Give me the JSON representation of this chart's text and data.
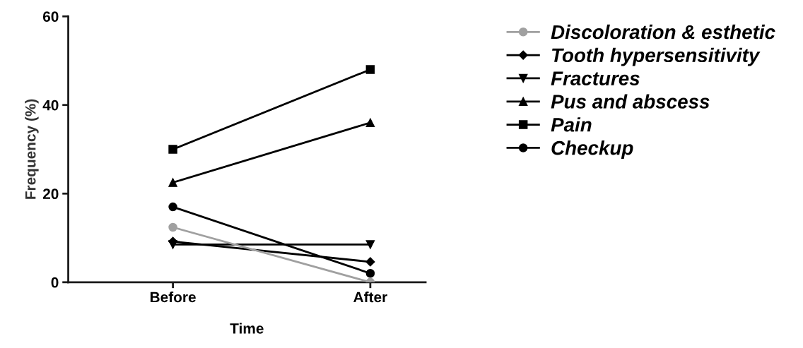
{
  "chart_data": {
    "type": "line",
    "xlabel": "Time",
    "ylabel": "Frequency (%)",
    "categories": [
      "Before",
      "After"
    ],
    "series": [
      {
        "name": "Discoloration & esthetic",
        "color": "#a0a0a0",
        "marker": "circle",
        "values": [
          12.4,
          0
        ]
      },
      {
        "name": "Tooth hypersensitivity",
        "color": "#000000",
        "marker": "diamond",
        "values": [
          9.2,
          4.6
        ]
      },
      {
        "name": "Fractures",
        "color": "#000000",
        "marker": "triangle_down",
        "values": [
          8.5,
          8.5
        ]
      },
      {
        "name": "Pus and abscess",
        "color": "#000000",
        "marker": "triangle",
        "values": [
          22.5,
          36
        ]
      },
      {
        "name": "Pain",
        "color": "#000000",
        "marker": "square",
        "values": [
          30,
          48
        ]
      },
      {
        "name": "Checkup",
        "color": "#000000",
        "marker": "circle",
        "values": [
          17,
          2
        ]
      }
    ],
    "ylim": [
      0,
      60
    ],
    "yticks": [
      0,
      20,
      40,
      60
    ],
    "grid": false,
    "legend": "right",
    "line_style": "solid"
  }
}
